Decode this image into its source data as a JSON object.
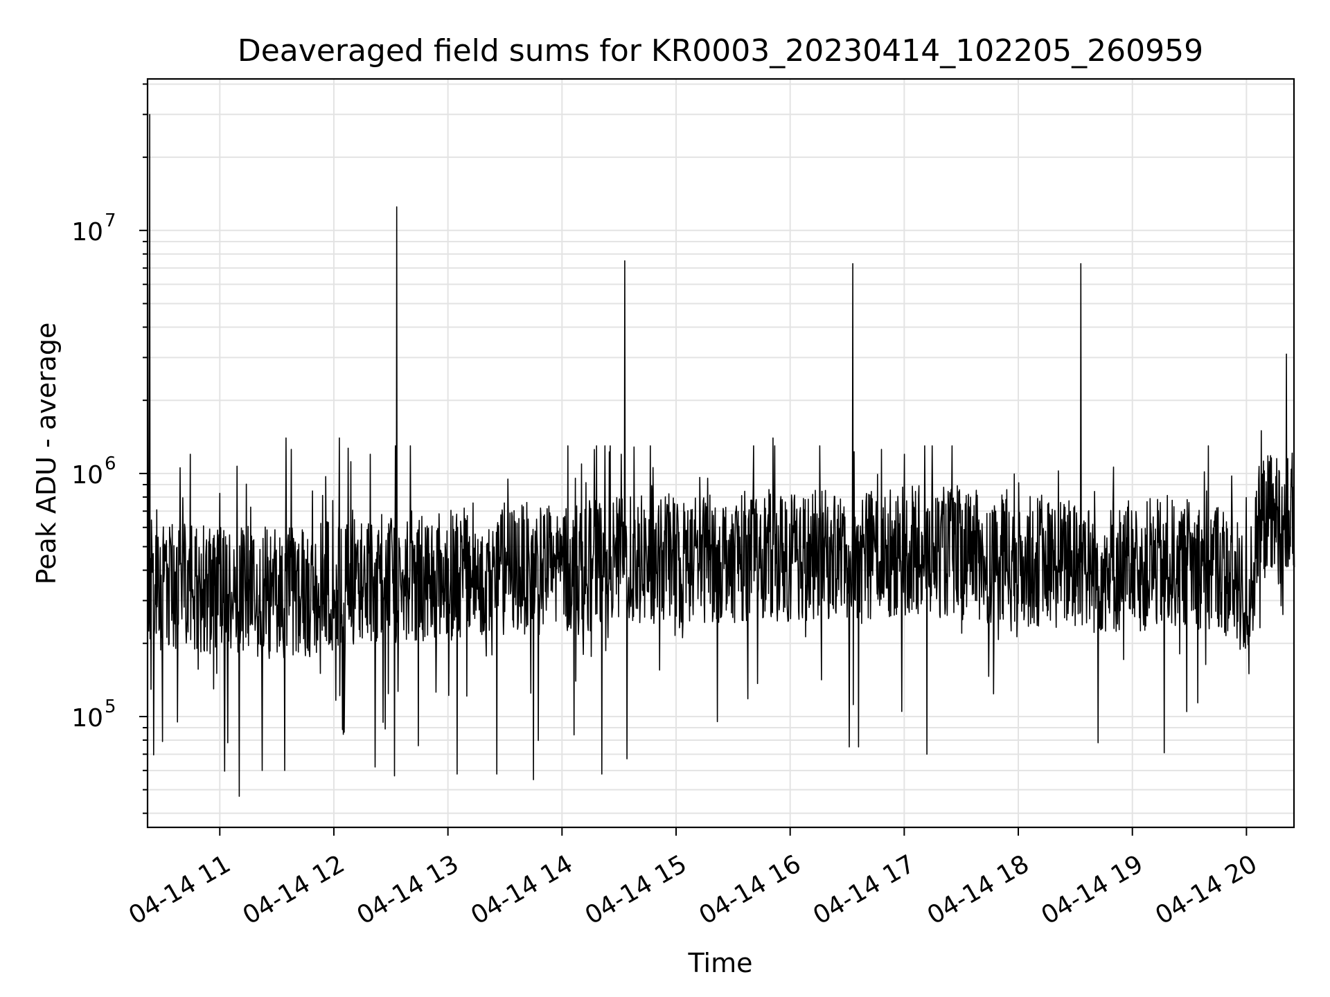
{
  "chart_data": {
    "type": "line",
    "title": "Deaveraged field sums for KR0003_20230414_102205_260959",
    "xlabel": "Time",
    "ylabel": "Peak ADU - average",
    "yscale": "log",
    "ylim": [
      35000,
      42000000
    ],
    "xlim": [
      "04-14 10:22",
      "04-14 20:25"
    ],
    "grid": true,
    "x_ticks": [
      "04-14 11",
      "04-14 12",
      "04-14 13",
      "04-14 14",
      "04-14 15",
      "04-14 16",
      "04-14 17",
      "04-14 18",
      "04-14 19",
      "04-14 20"
    ],
    "y_ticks": [
      {
        "value": 100000,
        "base": "10",
        "exp": "5"
      },
      {
        "value": 1000000,
        "base": "10",
        "exp": "6"
      },
      {
        "value": 10000000,
        "base": "10",
        "exp": "7"
      }
    ],
    "series": [
      {
        "color": "#000000",
        "x_unit": "hours on 04-14",
        "baseline": [
          [
            10.37,
            350000
          ],
          [
            10.75,
            330000
          ],
          [
            11.25,
            320000
          ],
          [
            11.75,
            330000
          ],
          [
            12.25,
            360000
          ],
          [
            12.75,
            380000
          ],
          [
            13.25,
            390000
          ],
          [
            13.75,
            410000
          ],
          [
            14.25,
            420000
          ],
          [
            14.75,
            440000
          ],
          [
            15.25,
            450000
          ],
          [
            15.75,
            460000
          ],
          [
            16.25,
            460000
          ],
          [
            16.75,
            470000
          ],
          [
            17.25,
            480000
          ],
          [
            17.75,
            450000
          ],
          [
            18.25,
            430000
          ],
          [
            18.75,
            400000
          ],
          [
            19.25,
            420000
          ],
          [
            19.75,
            430000
          ],
          [
            20.0,
            300000
          ],
          [
            20.15,
            650000
          ],
          [
            20.41,
            650000
          ]
        ],
        "peaks": [
          [
            10.385,
            30000000
          ],
          [
            10.37,
            6000000
          ],
          [
            12.55,
            12500000
          ],
          [
            14.55,
            7500000
          ],
          [
            16.55,
            7300000
          ],
          [
            18.55,
            7300000
          ],
          [
            20.35,
            3100000
          ],
          [
            20.13,
            1500000
          ],
          [
            11.58,
            1400000
          ],
          [
            12.05,
            1400000
          ],
          [
            12.32,
            1200000
          ],
          [
            10.74,
            1200000
          ],
          [
            15.85,
            1400000
          ],
          [
            14.52,
            1200000
          ],
          [
            17.0,
            1200000
          ]
        ],
        "dips": [
          [
            11.17,
            47000
          ],
          [
            12.53,
            57000
          ],
          [
            10.63,
            95000
          ],
          [
            11.07,
            78000
          ],
          [
            11.57,
            60000
          ],
          [
            11.37,
            60000
          ],
          [
            12.36,
            62000
          ],
          [
            13.08,
            58000
          ],
          [
            13.43,
            58000
          ],
          [
            13.75,
            55000
          ],
          [
            14.35,
            58000
          ],
          [
            14.57,
            67000
          ],
          [
            15.85,
            72000
          ],
          [
            16.52,
            75000
          ],
          [
            16.6,
            75000
          ],
          [
            17.2,
            70000
          ],
          [
            18.7,
            78000
          ],
          [
            19.28,
            71000
          ],
          [
            20.02,
            150000
          ]
        ]
      }
    ]
  }
}
